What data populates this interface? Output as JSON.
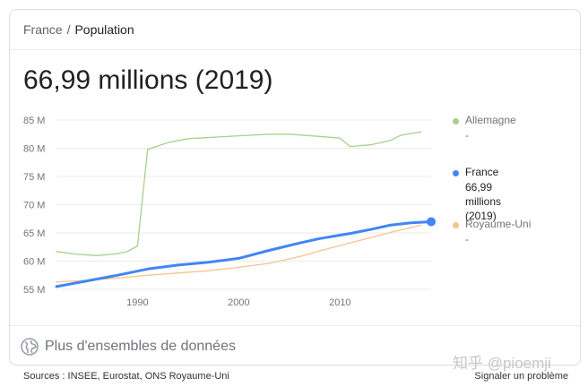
{
  "breadcrumb": {
    "parent": "France",
    "separator": "/",
    "current": "Population"
  },
  "headline": "66,99 millions (2019)",
  "chart_data": {
    "type": "line",
    "title": "",
    "xlabel": "",
    "ylabel": "",
    "xlim": [
      1982,
      2019
    ],
    "ylim": [
      55,
      85
    ],
    "x_ticks": [
      "1990",
      "2000",
      "2010"
    ],
    "y_ticks": [
      "85 M",
      "80 M",
      "75 M",
      "70 M",
      "65 M",
      "60 M",
      "55 M"
    ],
    "grid": true,
    "legend": "right",
    "series": [
      {
        "name": "Allemagne",
        "color": "#a8d08d",
        "x": [
          1982,
          1984,
          1986,
          1988,
          1989,
          1990,
          1991,
          1993,
          1995,
          1998,
          2000,
          2003,
          2005,
          2008,
          2010,
          2011,
          2013,
          2015,
          2016,
          2018
        ],
        "y": [
          61.7,
          61.2,
          61.0,
          61.3,
          61.7,
          62.7,
          79.8,
          81.0,
          81.7,
          82.0,
          82.2,
          82.5,
          82.5,
          82.1,
          81.8,
          80.3,
          80.6,
          81.4,
          82.3,
          82.9
        ]
      },
      {
        "name": "France",
        "color": "#4285f4",
        "x": [
          1982,
          1985,
          1988,
          1991,
          1994,
          1997,
          2000,
          2003,
          2006,
          2008,
          2011,
          2013,
          2015,
          2017,
          2019
        ],
        "y": [
          55.5,
          56.5,
          57.5,
          58.6,
          59.3,
          59.8,
          60.5,
          61.9,
          63.2,
          64.0,
          64.9,
          65.6,
          66.4,
          66.8,
          66.99
        ]
      },
      {
        "name": "Royaume-Uni",
        "color": "#f6c48f",
        "x": [
          1982,
          1985,
          1988,
          1991,
          1994,
          1997,
          2000,
          2003,
          2006,
          2009,
          2012,
          2015,
          2018
        ],
        "y": [
          56.3,
          56.6,
          57.0,
          57.5,
          57.9,
          58.3,
          58.9,
          59.6,
          60.8,
          62.3,
          63.7,
          65.1,
          66.4
        ]
      }
    ]
  },
  "legend": [
    {
      "name": "Allemagne",
      "value": "-",
      "color": "#a8d08d"
    },
    {
      "name": "France",
      "value_lines": [
        "66,99 millions",
        "(2019)"
      ],
      "color": "#4285f4"
    },
    {
      "name": "Royaume-Uni",
      "value": "-",
      "color": "#f6c48f"
    }
  ],
  "more_datasets": {
    "label": "Plus d'ensembles de données",
    "icon": "globe-icon"
  },
  "watermark": "知乎 @pioemji",
  "footer": {
    "sources": "Sources : INSEE, Eurostat, ONS Royaume-Uni",
    "report": "Signaler un problème"
  }
}
